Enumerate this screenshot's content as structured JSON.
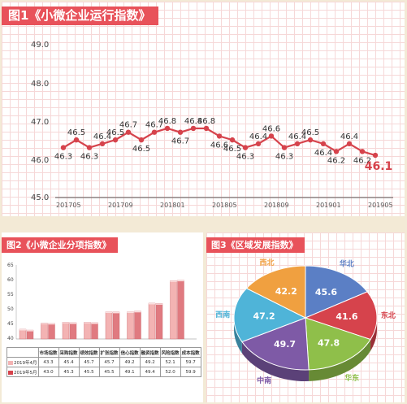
{
  "colors": {
    "accent": "#e8525a",
    "line": "#d6434c",
    "bg": "#f3ead6"
  },
  "chart1": {
    "title": "图1《小微企业运行指数》",
    "y_ticks": [
      "49.0",
      "48.0",
      "47.0",
      "46.0",
      "45.0"
    ],
    "x_ticks": [
      "201705",
      "201709",
      "201801",
      "201805",
      "201809",
      "201901",
      "201905"
    ],
    "last_label": "46.1"
  },
  "chart2": {
    "title": "图2《小微企业分项指数》",
    "y_ticks": [
      "65",
      "60",
      "55",
      "50",
      "45",
      "40"
    ],
    "row1_label": "2019年4月",
    "row2_label": "2019年5月"
  },
  "chart3": {
    "title": "图3《区域发展指数》"
  },
  "chart_data": [
    {
      "type": "line",
      "title": "图1《小微企业运行指数》",
      "x": [
        "201705",
        "201706",
        "201707",
        "201708",
        "201709",
        "201710",
        "201711",
        "201712",
        "201801",
        "201802",
        "201803",
        "201804",
        "201805",
        "201806",
        "201807",
        "201808",
        "201809",
        "201810",
        "201811",
        "201812",
        "201901",
        "201902",
        "201903",
        "201904",
        "201905"
      ],
      "series": [
        {
          "values": [
            46.3,
            46.5,
            46.3,
            46.4,
            46.5,
            46.7,
            46.5,
            46.7,
            46.8,
            46.7,
            46.8,
            46.8,
            46.6,
            46.5,
            46.3,
            46.4,
            46.6,
            46.3,
            46.4,
            46.5,
            46.4,
            46.2,
            46.4,
            46.2,
            46.1
          ]
        }
      ],
      "ylim": [
        45.0,
        49.0
      ],
      "grid": true
    },
    {
      "type": "bar",
      "title": "图2《小微企业分项指数》",
      "categories": [
        "市场指数",
        "采购指数",
        "绩效指数",
        "扩张指数",
        "信心指数",
        "融资指数",
        "风险指数",
        "成本指数"
      ],
      "series": [
        {
          "name": "2019年4月",
          "values": [
            43.3,
            45.4,
            45.7,
            45.7,
            49.2,
            49.2,
            52.1,
            59.7
          ]
        },
        {
          "name": "2019年5月",
          "values": [
            43.0,
            45.3,
            45.5,
            45.5,
            49.1,
            49.4,
            52.0,
            59.9
          ]
        }
      ],
      "ylim": [
        40,
        65
      ]
    },
    {
      "type": "pie",
      "title": "图3《区域发展指数》",
      "categories": [
        "华北",
        "东北",
        "华东",
        "中南",
        "西南",
        "西北"
      ],
      "values": [
        45.6,
        41.6,
        47.8,
        49.7,
        47.2,
        42.2
      ],
      "colors": [
        "#5b7fc5",
        "#d6434c",
        "#8fbf4a",
        "#7e5aa6",
        "#4fb4d8",
        "#f0a040"
      ]
    }
  ]
}
